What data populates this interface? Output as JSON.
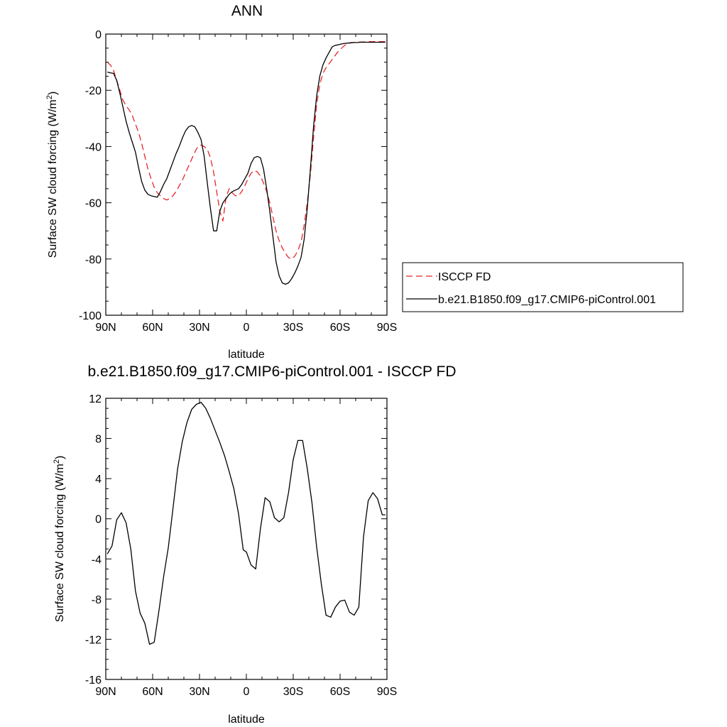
{
  "chart_data": [
    {
      "type": "line",
      "title": "ANN",
      "xlabel": "latitude",
      "ylabel": "Surface SW cloud forcing (W/m",
      "ylabel_sup": "2",
      "ylabel_end": ")",
      "xlim": [
        90,
        -90
      ],
      "ylim": [
        -100,
        0
      ],
      "x_ticks": [
        90,
        60,
        30,
        0,
        -30,
        -60,
        -90
      ],
      "x_tick_labels": [
        "90N",
        "60N",
        "30N",
        "0",
        "30S",
        "60S",
        "90S"
      ],
      "y_ticks": [
        0,
        -20,
        -40,
        -60,
        -80,
        -100
      ],
      "y_tick_labels": [
        "0",
        "-20",
        "-40",
        "-60",
        "-80",
        "-100"
      ],
      "grid": false,
      "legend_position": "right",
      "series": [
        {
          "name": "ISCCP FD",
          "color": "#e8262a",
          "dash": "dashed",
          "x": [
            89,
            87,
            85,
            83,
            81,
            79,
            77,
            75,
            73,
            71,
            69,
            67,
            65,
            63,
            61,
            59,
            57,
            55,
            53,
            51,
            49,
            47,
            45,
            43,
            41,
            39,
            37,
            35,
            33,
            31,
            29,
            27,
            25,
            23,
            21,
            19,
            17,
            15,
            13,
            11,
            9,
            7,
            5,
            3,
            1,
            -1,
            -3,
            -5,
            -7,
            -9,
            -11,
            -13,
            -15,
            -17,
            -19,
            -21,
            -23,
            -25,
            -27,
            -29,
            -31,
            -33,
            -35,
            -37,
            -39,
            -41,
            -43,
            -45,
            -47,
            -49,
            -51,
            -53,
            -55,
            -57,
            -59,
            -61,
            -63,
            -65,
            -67,
            -69,
            -71,
            -73,
            -75,
            -77,
            -79,
            -81,
            -83,
            -85,
            -87,
            -89
          ],
          "values": [
            -10.0,
            -11.0,
            -13.0,
            -16.5,
            -20.0,
            -23.5,
            -25.5,
            -27.0,
            -29.0,
            -32.0,
            -35.0,
            -39.0,
            -43.5,
            -48.0,
            -51.5,
            -54.5,
            -56.5,
            -57.5,
            -58.5,
            -59.0,
            -58.5,
            -57.5,
            -56.0,
            -54.0,
            -52.0,
            -49.5,
            -47.0,
            -44.5,
            -42.0,
            -40.0,
            -39.5,
            -40.0,
            -41.0,
            -44.0,
            -49.0,
            -56.0,
            -63.0,
            -66.5,
            -58.0,
            -55.0,
            -56.5,
            -57.5,
            -57.5,
            -56.0,
            -54.0,
            -51.5,
            -49.5,
            -48.5,
            -49.0,
            -50.5,
            -53.0,
            -56.0,
            -60.0,
            -65.0,
            -70.0,
            -73.5,
            -76.0,
            -78.0,
            -79.5,
            -80.0,
            -79.0,
            -77.0,
            -74.0,
            -68.0,
            -60.0,
            -50.0,
            -37.0,
            -25.0,
            -18.0,
            -14.0,
            -12.0,
            -10.5,
            -9.0,
            -7.5,
            -6.0,
            -5.0,
            -4.0,
            -3.5,
            -3.0,
            -3.0,
            -2.9,
            -2.8,
            -2.8,
            -2.7,
            -2.7,
            -2.7,
            -2.7,
            -2.7,
            -2.7,
            -2.7
          ]
        },
        {
          "name": "b.e21.B1850.f09_g17.CMIP6-piControl.001",
          "color": "#000000",
          "dash": "solid",
          "x": [
            89,
            87,
            85,
            83,
            81,
            79,
            77,
            75,
            73,
            71,
            69,
            67,
            65,
            63,
            61,
            59,
            57,
            55,
            53,
            51,
            49,
            47,
            45,
            43,
            41,
            39,
            37,
            35,
            33,
            31,
            29,
            27,
            25,
            23,
            21,
            19,
            17,
            15,
            13,
            11,
            9,
            7,
            5,
            3,
            1,
            -1,
            -3,
            -5,
            -7,
            -9,
            -11,
            -13,
            -15,
            -17,
            -19,
            -21,
            -23,
            -25,
            -27,
            -29,
            -31,
            -33,
            -35,
            -37,
            -39,
            -41,
            -43,
            -45,
            -47,
            -49,
            -51,
            -53,
            -55,
            -57,
            -59,
            -61,
            -63,
            -65,
            -67,
            -69,
            -71,
            -73,
            -75,
            -77,
            -79,
            -81,
            -83,
            -85,
            -87,
            -89
          ],
          "values": [
            -13.5,
            -13.8,
            -14.0,
            -16.5,
            -21.0,
            -26.0,
            -31.0,
            -35.0,
            -38.5,
            -42.0,
            -47.5,
            -52.5,
            -55.5,
            -57.0,
            -57.5,
            -57.8,
            -58.0,
            -56.0,
            -53.5,
            -51.5,
            -48.5,
            -45.5,
            -42.5,
            -40.0,
            -37.0,
            -34.5,
            -33.0,
            -32.5,
            -33.0,
            -35.0,
            -37.5,
            -43.5,
            -53.0,
            -62.0,
            -70.0,
            -70.0,
            -63.0,
            -60.0,
            -58.5,
            -57.0,
            -56.0,
            -55.5,
            -55.0,
            -53.5,
            -51.5,
            -49.5,
            -46.0,
            -44.0,
            -43.5,
            -44.0,
            -48.0,
            -55.0,
            -63.0,
            -72.0,
            -81.0,
            -86.0,
            -88.5,
            -89.0,
            -88.5,
            -87.0,
            -85.0,
            -82.5,
            -79.5,
            -73.0,
            -62.0,
            -48.0,
            -33.0,
            -22.0,
            -15.0,
            -11.0,
            -8.5,
            -6.5,
            -4.5,
            -4.0,
            -3.8,
            -3.5,
            -3.3,
            -3.2,
            -3.1,
            -3.0,
            -3.0,
            -2.9,
            -2.9,
            -2.9,
            -2.9,
            -2.9,
            -2.9,
            -2.9,
            -2.9,
            -2.9
          ]
        }
      ]
    },
    {
      "type": "line",
      "title": "b.e21.B1850.f09_g17.CMIP6-piControl.001 - ISCCP FD",
      "xlabel": "latitude",
      "ylabel": "Surface SW cloud forcing (W/m",
      "ylabel_sup": "2",
      "ylabel_end": ")",
      "xlim": [
        90,
        -90
      ],
      "ylim": [
        -16,
        12
      ],
      "x_ticks": [
        90,
        60,
        30,
        0,
        -30,
        -60,
        -90
      ],
      "x_tick_labels": [
        "90N",
        "60N",
        "30N",
        "0",
        "30S",
        "60S",
        "90S"
      ],
      "y_ticks": [
        12,
        8,
        4,
        0,
        -4,
        -8,
        -12,
        -16
      ],
      "y_tick_labels": [
        "12",
        "8",
        "4",
        "0",
        "-4",
        "-8",
        "-12",
        "-16"
      ],
      "grid": false,
      "series": [
        {
          "color": "#000000",
          "dash": "solid",
          "x": [
            89,
            86,
            83,
            80,
            77,
            74,
            71,
            68,
            65,
            62,
            59,
            56,
            53,
            50,
            47,
            44,
            41,
            38,
            35,
            32,
            29,
            26,
            23,
            20,
            17,
            14,
            11,
            8,
            5,
            2,
            0,
            -3,
            -6,
            -9,
            -12,
            -15,
            -18,
            -21,
            -24,
            -27,
            -30,
            -33,
            -36,
            -39,
            -42,
            -45,
            -48,
            -51,
            -54,
            -57,
            -60,
            -63,
            -66,
            -69,
            -72,
            -75,
            -78,
            -81,
            -84,
            -87,
            -89
          ],
          "values": [
            -3.5,
            -2.7,
            -0.1,
            0.6,
            -0.4,
            -3.0,
            -7.2,
            -9.4,
            -10.4,
            -12.5,
            -12.3,
            -9.2,
            -5.8,
            -2.9,
            1.0,
            5.0,
            7.7,
            9.6,
            10.9,
            11.4,
            11.6,
            11.0,
            10.0,
            8.8,
            7.6,
            6.3,
            4.7,
            3.0,
            0.5,
            -3.1,
            -3.3,
            -4.6,
            -5.0,
            -1.0,
            2.1,
            1.7,
            0.1,
            -0.3,
            0.1,
            2.6,
            5.9,
            7.8,
            7.8,
            5.0,
            1.6,
            -2.8,
            -6.5,
            -9.6,
            -9.8,
            -8.8,
            -8.2,
            -8.1,
            -9.3,
            -9.6,
            -8.8,
            -1.8,
            1.8,
            2.6,
            2.0,
            0.4,
            0.4
          ]
        }
      ]
    }
  ]
}
